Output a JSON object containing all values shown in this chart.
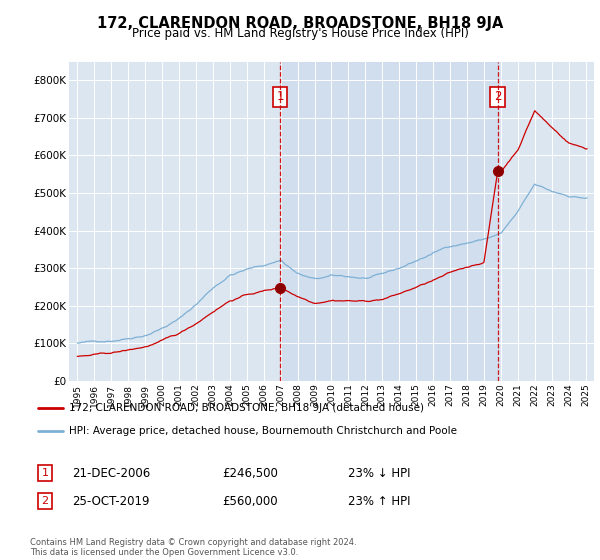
{
  "title": "172, CLARENDON ROAD, BROADSTONE, BH18 9JA",
  "subtitle": "Price paid vs. HM Land Registry's House Price Index (HPI)",
  "red_label": "172, CLARENDON ROAD, BROADSTONE, BH18 9JA (detached house)",
  "blue_label": "HPI: Average price, detached house, Bournemouth Christchurch and Poole",
  "sale1_date": "21-DEC-2006",
  "sale1_price": "£246,500",
  "sale1_hpi": "23% ↓ HPI",
  "sale2_date": "25-OCT-2019",
  "sale2_price": "£560,000",
  "sale2_hpi": "23% ↑ HPI",
  "footer": "Contains HM Land Registry data © Crown copyright and database right 2024.\nThis data is licensed under the Open Government Licence v3.0.",
  "ylim": [
    0,
    850000
  ],
  "yticks": [
    0,
    100000,
    200000,
    300000,
    400000,
    500000,
    600000,
    700000,
    800000
  ],
  "ytick_labels": [
    "£0",
    "£100K",
    "£200K",
    "£300K",
    "£400K",
    "£500K",
    "£600K",
    "£700K",
    "£800K"
  ],
  "sale1_x": 2006.97,
  "sale1_y": 246500,
  "sale2_x": 2019.81,
  "sale2_y": 560000,
  "xlim_left": 1994.5,
  "xlim_right": 2025.5
}
